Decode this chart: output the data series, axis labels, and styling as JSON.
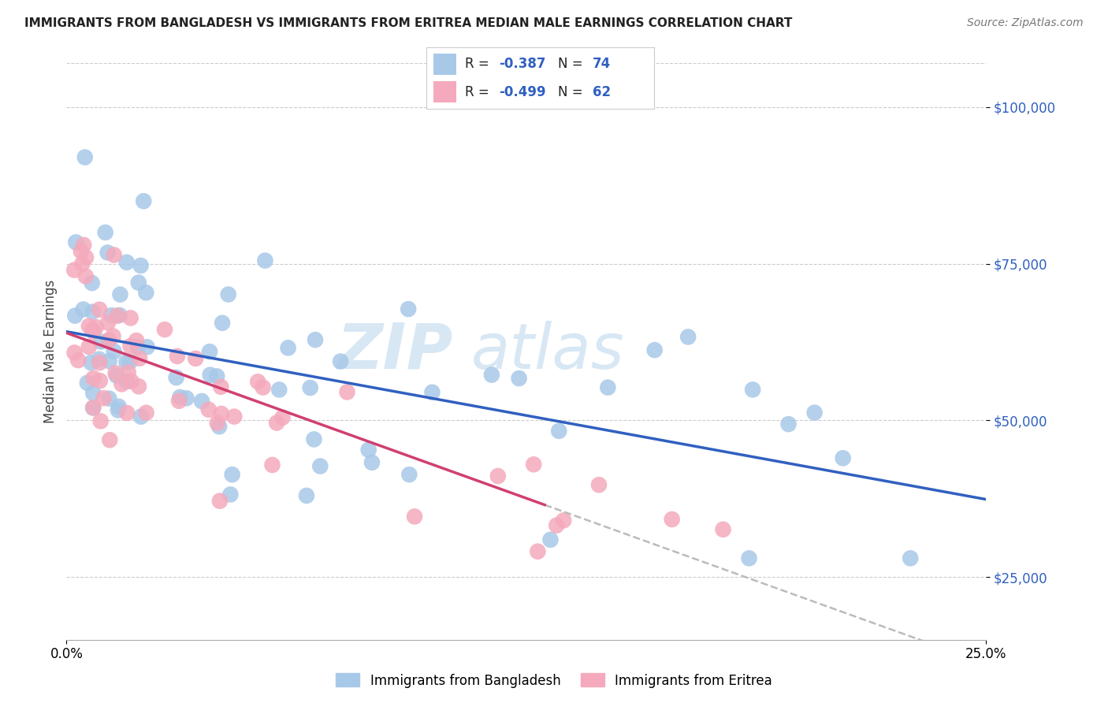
{
  "title": "IMMIGRANTS FROM BANGLADESH VS IMMIGRANTS FROM ERITREA MEDIAN MALE EARNINGS CORRELATION CHART",
  "source": "Source: ZipAtlas.com",
  "ylabel": "Median Male Earnings",
  "xlim": [
    0.0,
    0.25
  ],
  "ylim": [
    15000,
    107000
  ],
  "yticks": [
    25000,
    50000,
    75000,
    100000
  ],
  "ytick_labels": [
    "$25,000",
    "$50,000",
    "$75,000",
    "$100,000"
  ],
  "bangladesh_color": "#a8c8e8",
  "eritrea_color": "#f4aabc",
  "bangladesh_line_color": "#3060c0",
  "eritrea_line_color": "#d04070",
  "R_bangladesh": -0.387,
  "N_bangladesh": 74,
  "R_eritrea": -0.499,
  "N_eritrea": 62,
  "watermark_zip": "ZIP",
  "watermark_atlas": "atlas",
  "legend_label_bangladesh": "Immigrants from Bangladesh",
  "legend_label_eritrea": "Immigrants from Eritrea",
  "bd_seed": 77,
  "er_seed": 99,
  "title_fontsize": 11,
  "source_fontsize": 10,
  "tick_fontsize": 12,
  "ylabel_fontsize": 12,
  "legend_fontsize": 12,
  "watermark_zip_size": 58,
  "watermark_atlas_size": 58
}
